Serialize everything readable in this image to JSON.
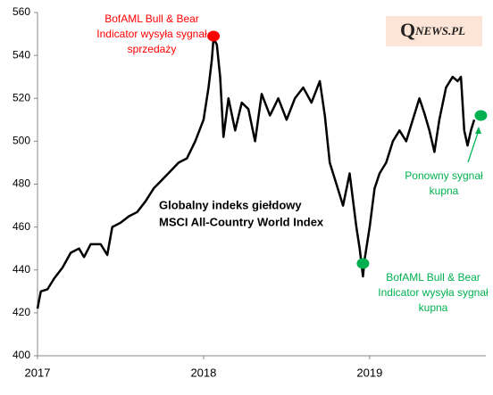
{
  "chart_data": {
    "type": "line",
    "series": [
      {
        "color": "#000000",
        "x": [
          2017.0,
          2017.02,
          2017.06,
          2017.1,
          2017.15,
          2017.2,
          2017.25,
          2017.28,
          2017.32,
          2017.38,
          2017.42,
          2017.45,
          2017.5,
          2017.55,
          2017.6,
          2017.65,
          2017.7,
          2017.75,
          2017.8,
          2017.85,
          2017.9,
          2017.95,
          2018.0,
          2018.03,
          2018.05,
          2018.06,
          2018.08,
          2018.1,
          2018.12,
          2018.15,
          2018.19,
          2018.23,
          2018.27,
          2018.31,
          2018.35,
          2018.4,
          2018.45,
          2018.5,
          2018.55,
          2018.6,
          2018.65,
          2018.7,
          2018.73,
          2018.76,
          2018.8,
          2018.84,
          2018.88,
          2018.92,
          2018.94,
          2018.96,
          2018.97,
          2019.0,
          2019.03,
          2019.06,
          2019.1,
          2019.14,
          2019.18,
          2019.22,
          2019.26,
          2019.3,
          2019.33,
          2019.36,
          2019.39,
          2019.42,
          2019.46,
          2019.5,
          2019.53,
          2019.55,
          2019.57,
          2019.59,
          2019.61,
          2019.63
        ],
        "values": [
          422,
          430,
          431,
          436,
          441,
          448,
          450,
          446,
          452,
          452,
          447,
          460,
          462,
          465,
          467,
          472,
          478,
          482,
          486,
          490,
          492,
          500,
          510,
          525,
          538,
          548,
          545,
          530,
          502,
          520,
          505,
          518,
          515,
          500,
          522,
          512,
          520,
          510,
          520,
          525,
          518,
          528,
          512,
          490,
          480,
          470,
          485,
          460,
          450,
          437,
          445,
          460,
          478,
          485,
          490,
          500,
          505,
          500,
          510,
          520,
          513,
          505,
          495,
          510,
          525,
          530,
          528,
          530,
          505,
          498,
          505,
          510
        ]
      }
    ],
    "xlim": [
      2017,
      2019.7
    ],
    "xticks": [
      2017,
      2018,
      2019
    ],
    "ylim": [
      400,
      560
    ],
    "yticks": [
      400,
      420,
      440,
      460,
      480,
      500,
      520,
      540,
      560
    ],
    "markers": [
      {
        "x": 2018.06,
        "y": 549,
        "color": "#ff0000"
      },
      {
        "x": 2018.96,
        "y": 443,
        "color": "#00b050"
      },
      {
        "x": 2019.67,
        "y": 512,
        "color": "#00b050"
      }
    ],
    "annotations": [
      {
        "lines": [
          "BofAML  Bull & Bear",
          "Indicator wysyła sygnał",
          "sprzedaży"
        ],
        "color": "#ff0000"
      },
      {
        "lines": [
          "BofAML  Bull & Bear",
          "Indicator wysyła sygnał",
          "kupna"
        ],
        "color": "#00b050"
      },
      {
        "lines": [
          "Ponowny sygnał",
          "kupna"
        ],
        "color": "#00b050"
      }
    ],
    "center_text": [
      "Globalny indeks giełdowy",
      "MSCI All-Country World Index"
    ],
    "logo": [
      "Q",
      "NEWS.PL"
    ]
  }
}
